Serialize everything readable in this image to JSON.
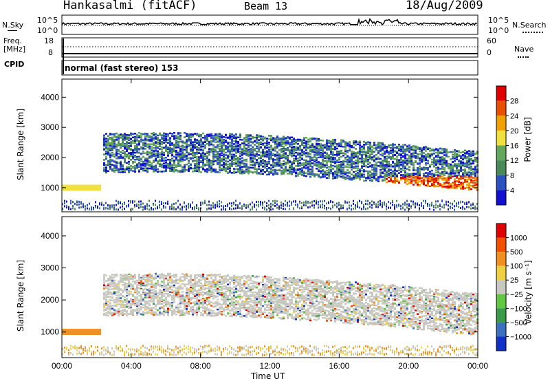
{
  "header": {
    "station": "Hankasalmi (fitACF)",
    "beam": "Beam 13",
    "date": "18/Aug/2009"
  },
  "noise_panel": {
    "left_label": "N.Sky",
    "right_label": "N.Search",
    "left_ticks": [
      "10^5",
      "10^0"
    ],
    "right_ticks": [
      "10^5",
      "10^0"
    ]
  },
  "freq_panel": {
    "left_label_1": "Freq.",
    "left_label_2": "[MHz]",
    "right_label": "Nave",
    "left_ticks": [
      "18",
      "8"
    ],
    "right_ticks": [
      "60",
      "0"
    ]
  },
  "cpid_panel": {
    "label": "CPID",
    "text": "normal (fast stereo) 153"
  },
  "chart_data": [
    {
      "type": "heatmap",
      "name": "power",
      "ylabel": "Slant Range [km]",
      "ylim": [
        200,
        4600
      ],
      "yticks": [
        "1000",
        "2000",
        "3000",
        "4000"
      ],
      "colorbar_label": "Power [dB]",
      "colorbar_ticks": [
        "4",
        "8",
        "12",
        "16",
        "20",
        "24",
        "28"
      ],
      "colors": [
        "#1010d0",
        "#2a52c0",
        "#4a8a5a",
        "#63a85a",
        "#f0e040",
        "#f0a000",
        "#e85000",
        "#e00000"
      ]
    },
    {
      "type": "heatmap",
      "name": "velocity",
      "ylabel": "Slant Range [km]",
      "ylim": [
        200,
        4600
      ],
      "yticks": [
        "1000",
        "2000",
        "3000",
        "4000"
      ],
      "colorbar_label": "Velocity [m s⁻¹]",
      "colorbar_ticks": [
        "1000",
        "500",
        "100",
        "25",
        "−25",
        "−100",
        "−500",
        "−1000"
      ],
      "colors": [
        "#1030c8",
        "#3c70c0",
        "#3a9a4a",
        "#60c840",
        "#c8c8c0",
        "#f0d040",
        "#f09020",
        "#f05000",
        "#e00000"
      ]
    }
  ],
  "x_axis": {
    "ticks": [
      "00:00",
      "04:00",
      "08:00",
      "12:00",
      "16:00",
      "20:00",
      "00:00"
    ],
    "label": "Time UT"
  }
}
